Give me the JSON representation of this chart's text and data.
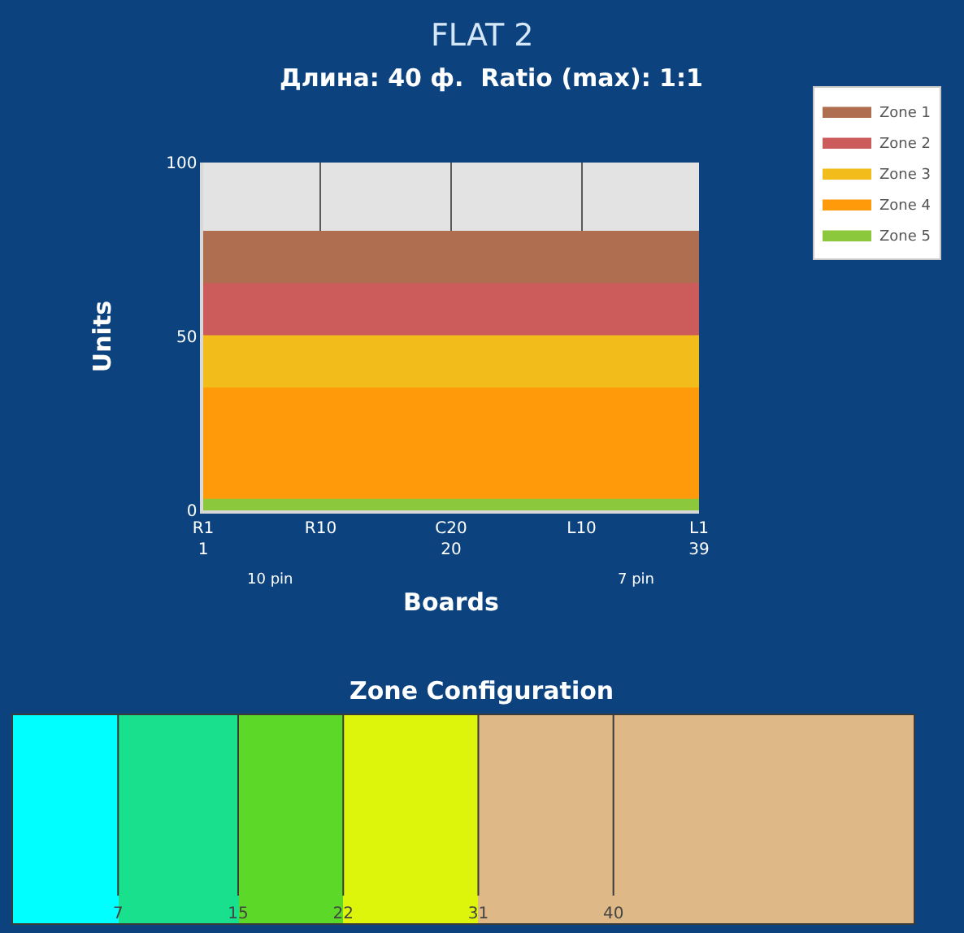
{
  "chart_data": [
    {
      "type": "area",
      "title": "FLAT 2",
      "subtitle": "Длина: 40 ф.  Ratio (max): 1:1",
      "xlabel": "Boards",
      "ylabel": "Units",
      "annotations": [
        "10 pin",
        "7 pin"
      ],
      "categories": [
        "R1\n1",
        null,
        null,
        null,
        null,
        null,
        null,
        null,
        null,
        "R10",
        null,
        null,
        null,
        null,
        null,
        null,
        null,
        null,
        null,
        "C20\n20",
        null,
        null,
        null,
        null,
        null,
        null,
        null,
        null,
        null,
        "L10",
        null,
        null,
        null,
        null,
        null,
        null,
        null,
        null,
        "L1\n39"
      ],
      "ylim": [
        0,
        100
      ],
      "yticks": [
        0,
        50,
        100
      ],
      "grid": "x",
      "legend": "top right",
      "series": [
        {
          "name": "Zone 1",
          "color": "#b06e50",
          "values": [
            80,
            80,
            80,
            80,
            80,
            80,
            80,
            80,
            80,
            80,
            80,
            80,
            80,
            80,
            80,
            80,
            80,
            80,
            80,
            80,
            80,
            80,
            80,
            80,
            80,
            80,
            80,
            80,
            80,
            80,
            80,
            80,
            80,
            80,
            80,
            80,
            80,
            80,
            80
          ]
        },
        {
          "name": "Zone 2",
          "color": "#cc5c5c",
          "values": [
            65,
            65,
            65,
            65,
            65,
            65,
            65,
            65,
            65,
            65,
            65,
            65,
            65,
            65,
            65,
            65,
            65,
            65,
            65,
            65,
            65,
            65,
            65,
            65,
            65,
            65,
            65,
            65,
            65,
            65,
            65,
            65,
            65,
            65,
            65,
            65,
            65,
            65,
            65
          ]
        },
        {
          "name": "Zone 3",
          "color": "#f2bc1a",
          "values": [
            50,
            50,
            50,
            50,
            50,
            50,
            50,
            50,
            50,
            50,
            50,
            50,
            50,
            50,
            50,
            50,
            50,
            50,
            50,
            50,
            50,
            50,
            50,
            50,
            50,
            50,
            50,
            50,
            50,
            50,
            50,
            50,
            50,
            50,
            50,
            50,
            50,
            50,
            50
          ]
        },
        {
          "name": "Zone 4",
          "color": "#ff9a0a",
          "values": [
            35,
            35,
            35,
            35,
            35,
            35,
            35,
            35,
            35,
            35,
            35,
            35,
            35,
            35,
            35,
            35,
            35,
            35,
            35,
            35,
            35,
            35,
            35,
            35,
            35,
            35,
            35,
            35,
            35,
            35,
            35,
            35,
            35,
            35,
            35,
            35,
            35,
            35,
            35
          ]
        },
        {
          "name": "Zone 5",
          "color": "#8cc83c",
          "values": [
            3,
            3,
            3,
            3,
            3,
            3,
            3,
            3,
            3,
            3,
            3,
            3,
            3,
            3,
            3,
            3,
            3,
            3,
            3,
            3,
            3,
            3,
            3,
            3,
            3,
            3,
            3,
            3,
            3,
            3,
            3,
            3,
            3,
            3,
            3,
            3,
            3,
            3,
            3
          ]
        }
      ]
    },
    {
      "type": "bar",
      "orientation": "horizontal",
      "stacked": true,
      "title": "Zone Configuration",
      "categories": [
        null
      ],
      "xlim": [
        0,
        60
      ],
      "xticks": [
        7,
        15,
        22,
        31,
        40
      ],
      "tick_labels": "x",
      "grid": "x",
      "series": [
        {
          "color": "#00ffff",
          "values": [
            7
          ]
        },
        {
          "color": "#18e08c",
          "values": [
            8
          ]
        },
        {
          "color": "#5cd828",
          "values": [
            7
          ]
        },
        {
          "color": "#dcf50a",
          "values": [
            9
          ]
        },
        {
          "color": "#deb887",
          "values": [
            9
          ]
        },
        {
          "color": "#deb887",
          "values": [
            20
          ]
        }
      ]
    }
  ]
}
